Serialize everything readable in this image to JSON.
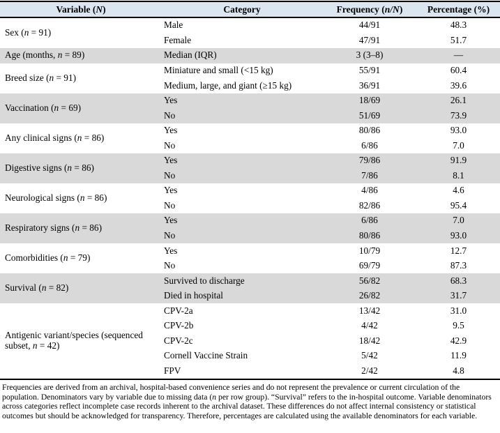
{
  "colors": {
    "header_bg": "#dce6f1",
    "shaded_row_bg": "#d9d9d9",
    "rule": "#000000",
    "text": "#000000",
    "page_bg": "#ffffff"
  },
  "table": {
    "headers": [
      {
        "pre": "Variable (",
        "italic": "N",
        "post": ")"
      },
      {
        "pre": "Category",
        "italic": "",
        "post": ""
      },
      {
        "pre": "Frequency (",
        "italic": "n/N",
        "post": ")"
      },
      {
        "pre": "Percentage (%)",
        "italic": "",
        "post": ""
      }
    ],
    "groups": [
      {
        "variable": {
          "pre": "Sex (",
          "italic": "n",
          "post": " = 91)"
        },
        "shaded": false,
        "rows": [
          {
            "category": "Male",
            "frequency": "44/91",
            "percentage": "48.3"
          },
          {
            "category": "Female",
            "frequency": "47/91",
            "percentage": "51.7"
          }
        ]
      },
      {
        "variable": {
          "pre": "Age (months, ",
          "italic": "n",
          "post": " = 89)"
        },
        "shaded": true,
        "rows": [
          {
            "category": "Median (IQR)",
            "frequency": "3 (3–8)",
            "percentage": "—"
          }
        ]
      },
      {
        "variable": {
          "pre": "Breed size (",
          "italic": "n",
          "post": " = 91)"
        },
        "shaded": false,
        "rows": [
          {
            "category": "Miniature and small (<15 kg)",
            "frequency": "55/91",
            "percentage": "60.4"
          },
          {
            "category": "Medium, large, and giant (≥15 kg)",
            "frequency": "36/91",
            "percentage": "39.6"
          }
        ]
      },
      {
        "variable": {
          "pre": "Vaccination (",
          "italic": "n",
          "post": " = 69)"
        },
        "shaded": true,
        "rows": [
          {
            "category": "Yes",
            "frequency": "18/69",
            "percentage": "26.1"
          },
          {
            "category": "No",
            "frequency": "51/69",
            "percentage": "73.9"
          }
        ]
      },
      {
        "variable": {
          "pre": "Any clinical signs (",
          "italic": "n",
          "post": " = 86)"
        },
        "shaded": false,
        "rows": [
          {
            "category": "Yes",
            "frequency": "80/86",
            "percentage": "93.0"
          },
          {
            "category": "No",
            "frequency": "6/86",
            "percentage": "7.0"
          }
        ]
      },
      {
        "variable": {
          "pre": "Digestive signs (",
          "italic": "n",
          "post": " = 86)"
        },
        "shaded": true,
        "rows": [
          {
            "category": "Yes",
            "frequency": "79/86",
            "percentage": "91.9"
          },
          {
            "category": "No",
            "frequency": "7/86",
            "percentage": "8.1"
          }
        ]
      },
      {
        "variable": {
          "pre": "Neurological signs (",
          "italic": "n",
          "post": " = 86)"
        },
        "shaded": false,
        "rows": [
          {
            "category": "Yes",
            "frequency": "4/86",
            "percentage": "4.6"
          },
          {
            "category": "No",
            "frequency": "82/86",
            "percentage": "95.4"
          }
        ]
      },
      {
        "variable": {
          "pre": "Respiratory signs (",
          "italic": "n",
          "post": " = 86)"
        },
        "shaded": true,
        "rows": [
          {
            "category": "Yes",
            "frequency": "6/86",
            "percentage": "7.0"
          },
          {
            "category": "No",
            "frequency": "80/86",
            "percentage": "93.0"
          }
        ]
      },
      {
        "variable": {
          "pre": "Comorbidities (",
          "italic": "n",
          "post": " = 79)"
        },
        "shaded": false,
        "rows": [
          {
            "category": "Yes",
            "frequency": "10/79",
            "percentage": "12.7"
          },
          {
            "category": "No",
            "frequency": "69/79",
            "percentage": "87.3"
          }
        ]
      },
      {
        "variable": {
          "pre": "Survival (",
          "italic": "n",
          "post": " = 82)"
        },
        "shaded": true,
        "rows": [
          {
            "category": "Survived to discharge",
            "frequency": "56/82",
            "percentage": "68.3"
          },
          {
            "category": "Died in hospital",
            "frequency": "26/82",
            "percentage": "31.7"
          }
        ]
      },
      {
        "variable": {
          "pre": "Antigenic variant/species (sequenced subset, ",
          "italic": "n",
          "post": " = 42)"
        },
        "shaded": false,
        "rows": [
          {
            "category": "CPV-2a",
            "frequency": "13/42",
            "percentage": "31.0"
          },
          {
            "category": "CPV-2b",
            "frequency": "4/42",
            "percentage": "9.5"
          },
          {
            "category": "CPV-2c",
            "frequency": "18/42",
            "percentage": "42.9"
          },
          {
            "category": "Cornell Vaccine Strain",
            "frequency": "5/42",
            "percentage": "11.9"
          },
          {
            "category": "FPV",
            "frequency": "2/42",
            "percentage": "4.8"
          }
        ]
      }
    ]
  },
  "footnote": {
    "part1": "Frequencies are derived from an archival, hospital-based convenience series and do not represent the prevalence or current circulation of the population. Denominators vary by variable due to missing data (",
    "italic": "n",
    "part2": " per row group). “Survival” refers to the in-hospital outcome. Variable denominators across categories reflect incomplete case records inherent to the archival dataset. These differences do not affect internal consistency or statistical outcomes but should be acknowledged for transparency. Therefore, percentages are calculated using the available denominators for each variable."
  }
}
